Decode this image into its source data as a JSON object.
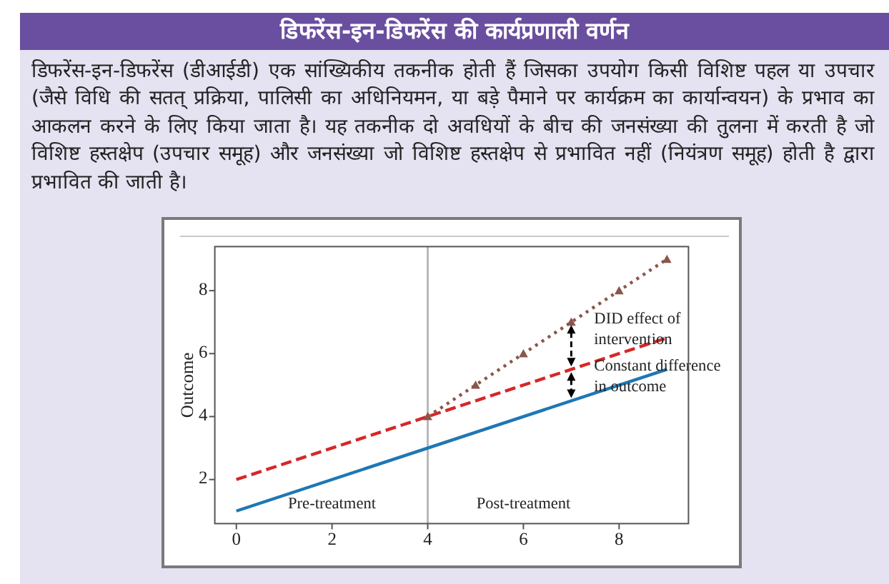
{
  "chart_data": {
    "type": "line",
    "title": "डिफरेंस-इन-डिफरेंस की कार्यप्रणाली वर्णन",
    "subtitle": "डिफरेंस-इन-डिफरेंस (डीआईडी) एक सांख्यिकीय तकनीक होती हैं जिसका उपयोग किसी विशिष्ट पहल या उपचार (जैसे विधि की सतत् प्रक्रिया, पालिसी का अधिनियमन, या बड़े पैमाने पर कार्यक्रम का कार्यान्वयन) के प्रभाव का आकलन करने के लिए किया जाता है। यह तकनीक दो अवधियों के बीच की जनसंख्या की तुलना में करती है जो विशिष्ट हस्तक्षेप (उपचार समूह) और जनसंख्या जो विशिष्ट हस्तक्षेप से प्रभावित नहीं (नियंत्रण समूह) होती है द्वारा प्रभावित की जाती है।",
    "ylabel": "Outcome",
    "xlim": [
      -0.45,
      9.45
    ],
    "ylim": [
      0.6,
      9.4
    ],
    "xticks": [
      0,
      2,
      4,
      6,
      8
    ],
    "yticks": [
      2,
      4,
      6,
      8
    ],
    "series": [
      {
        "color": "#1f77b4",
        "x": [
          0,
          9
        ],
        "values": [
          1,
          5.5
        ],
        "line_style": "solid"
      },
      {
        "color": "#d62728",
        "x": [
          0,
          9
        ],
        "values": [
          2,
          6.5
        ],
        "line_style": "dashed"
      },
      {
        "color": "#8c564b",
        "x": [
          4,
          5,
          6,
          7,
          8,
          9
        ],
        "values": [
          4,
          5,
          6,
          7,
          8,
          9
        ],
        "line_style": "dotted",
        "marker": "triangle"
      }
    ],
    "ref_lines": [
      {
        "axis": "x",
        "value": 4,
        "color": "#b0b0b0"
      }
    ],
    "annotations": [
      {
        "text": "DID effect of\nintervention",
        "x": 7,
        "y": 7
      },
      {
        "text": "Constant difference\nin outcome",
        "x": 7,
        "y": 5.5
      },
      "Pre-treatment",
      "Post-treatment"
    ]
  }
}
